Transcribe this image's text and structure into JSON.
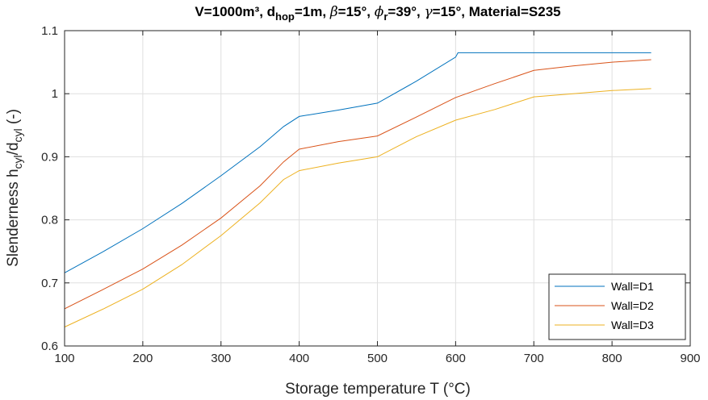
{
  "chart_data": {
    "type": "line",
    "title_parts": {
      "t1": "V=1000m³, d",
      "t1_sub": "hop",
      "t2": "=1m, ",
      "t3_beta": "β",
      "t4": "=15°, ",
      "t5_phi": "ϕ",
      "t5_sub": "r",
      "t6": "=39°, ",
      "t7_gamma": "γ",
      "t8": "=15°, Material=S235"
    },
    "xlabel": "Storage temperature T (°C)",
    "ylabel_parts": {
      "main": "Slenderness h",
      "sub1": "cyl",
      "mid": "/d",
      "sub2": "cyl",
      "end": " (-)"
    },
    "xlim": [
      100,
      900
    ],
    "ylim": [
      0.6,
      1.1
    ],
    "xticks": [
      "100",
      "200",
      "300",
      "400",
      "500",
      "600",
      "700",
      "800",
      "900"
    ],
    "yticks": [
      "0.6",
      "0.7",
      "0.8",
      "0.9",
      "1",
      "1.1"
    ],
    "grid": true,
    "legend_position": "bottom-right",
    "series": [
      {
        "name": "Wall=D1",
        "color": "#0072BD",
        "x": [
          100,
          150,
          200,
          250,
          300,
          350,
          380,
          400,
          450,
          500,
          550,
          600,
          603,
          650,
          700,
          750,
          800,
          850
        ],
        "y": [
          0.716,
          0.75,
          0.786,
          0.826,
          0.87,
          0.916,
          0.948,
          0.964,
          0.974,
          0.985,
          1.02,
          1.058,
          1.065,
          1.065,
          1.065,
          1.065,
          1.065,
          1.065
        ]
      },
      {
        "name": "Wall=D2",
        "color": "#D95319",
        "x": [
          100,
          150,
          200,
          250,
          300,
          350,
          380,
          400,
          450,
          500,
          550,
          600,
          650,
          700,
          750,
          800,
          850
        ],
        "y": [
          0.659,
          0.69,
          0.722,
          0.76,
          0.803,
          0.854,
          0.892,
          0.912,
          0.924,
          0.933,
          0.963,
          0.994,
          1.016,
          1.037,
          1.044,
          1.05,
          1.054
        ]
      },
      {
        "name": "Wall=D3",
        "color": "#EDB120",
        "x": [
          100,
          150,
          200,
          250,
          300,
          350,
          380,
          400,
          450,
          500,
          550,
          600,
          650,
          700,
          750,
          800,
          850
        ],
        "y": [
          0.63,
          0.659,
          0.69,
          0.729,
          0.775,
          0.827,
          0.864,
          0.878,
          0.89,
          0.9,
          0.932,
          0.958,
          0.975,
          0.995,
          1.0,
          1.005,
          1.008
        ]
      }
    ]
  }
}
